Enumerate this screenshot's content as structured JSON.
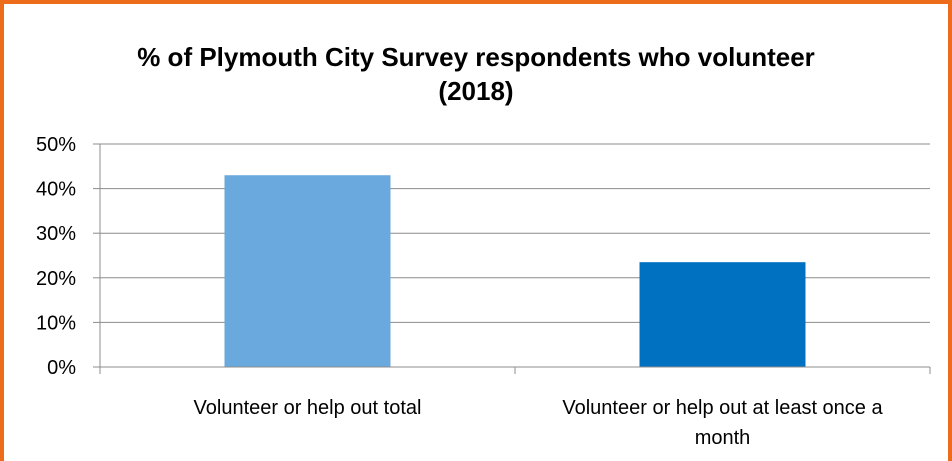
{
  "colors": {
    "frame_border": "#ed6c1c",
    "gridline": "#8c8c8c",
    "bar_colors": [
      "#6aa9de",
      "#0070c0"
    ]
  },
  "chart_data": {
    "type": "bar",
    "title_line1": "% of Plymouth City Survey respondents who volunteer",
    "title_line2": "(2018)",
    "categories": [
      [
        "Volunteer or help out total"
      ],
      [
        "Volunteer or help out at least once a",
        "month"
      ]
    ],
    "values": [
      43,
      23.5
    ],
    "unit": "%",
    "ylim": [
      0,
      50
    ],
    "yticks": [
      0,
      10,
      20,
      30,
      40,
      50
    ],
    "ytick_labels": [
      "0%",
      "10%",
      "20%",
      "30%",
      "40%",
      "50%"
    ],
    "grid": true,
    "legend": "none"
  }
}
